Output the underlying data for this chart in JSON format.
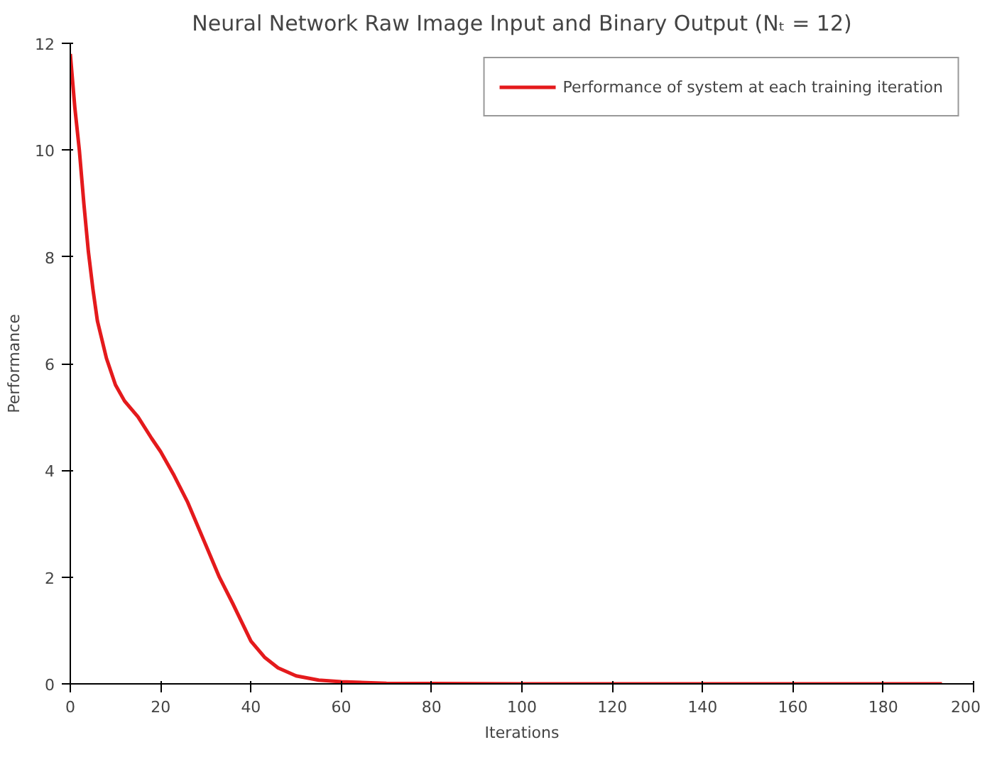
{
  "chart_data": {
    "type": "line",
    "title": "Neural Network Raw Image Input and Binary Output (Nₜ = 12)",
    "xlabel": "Iterations",
    "ylabel": "Performance",
    "xlim": [
      0,
      200
    ],
    "ylim": [
      0,
      12
    ],
    "xticks": [
      0,
      20,
      40,
      60,
      80,
      100,
      120,
      140,
      160,
      180,
      200
    ],
    "yticks": [
      0,
      2,
      4,
      6,
      8,
      10,
      12
    ],
    "grid": false,
    "legend": "top right",
    "line_style": "solid",
    "x": [
      0,
      1,
      2,
      3,
      4,
      5,
      6,
      8,
      10,
      12,
      15,
      18,
      20,
      23,
      26,
      28,
      30,
      33,
      36,
      38,
      40,
      43,
      46,
      50,
      55,
      60,
      70,
      80,
      100,
      150,
      193
    ],
    "series": [
      {
        "name": "Performance of system at each training iteration",
        "color": "#e41a1c",
        "values": [
          11.8,
          10.8,
          10,
          9,
          8.1,
          7.4,
          6.8,
          6.1,
          5.6,
          5.3,
          5.0,
          4.6,
          4.35,
          3.9,
          3.4,
          3.0,
          2.6,
          2.0,
          1.5,
          1.15,
          0.8,
          0.5,
          0.3,
          0.15,
          0.07,
          0.04,
          0.01,
          0.005,
          0,
          0,
          0
        ]
      }
    ]
  }
}
